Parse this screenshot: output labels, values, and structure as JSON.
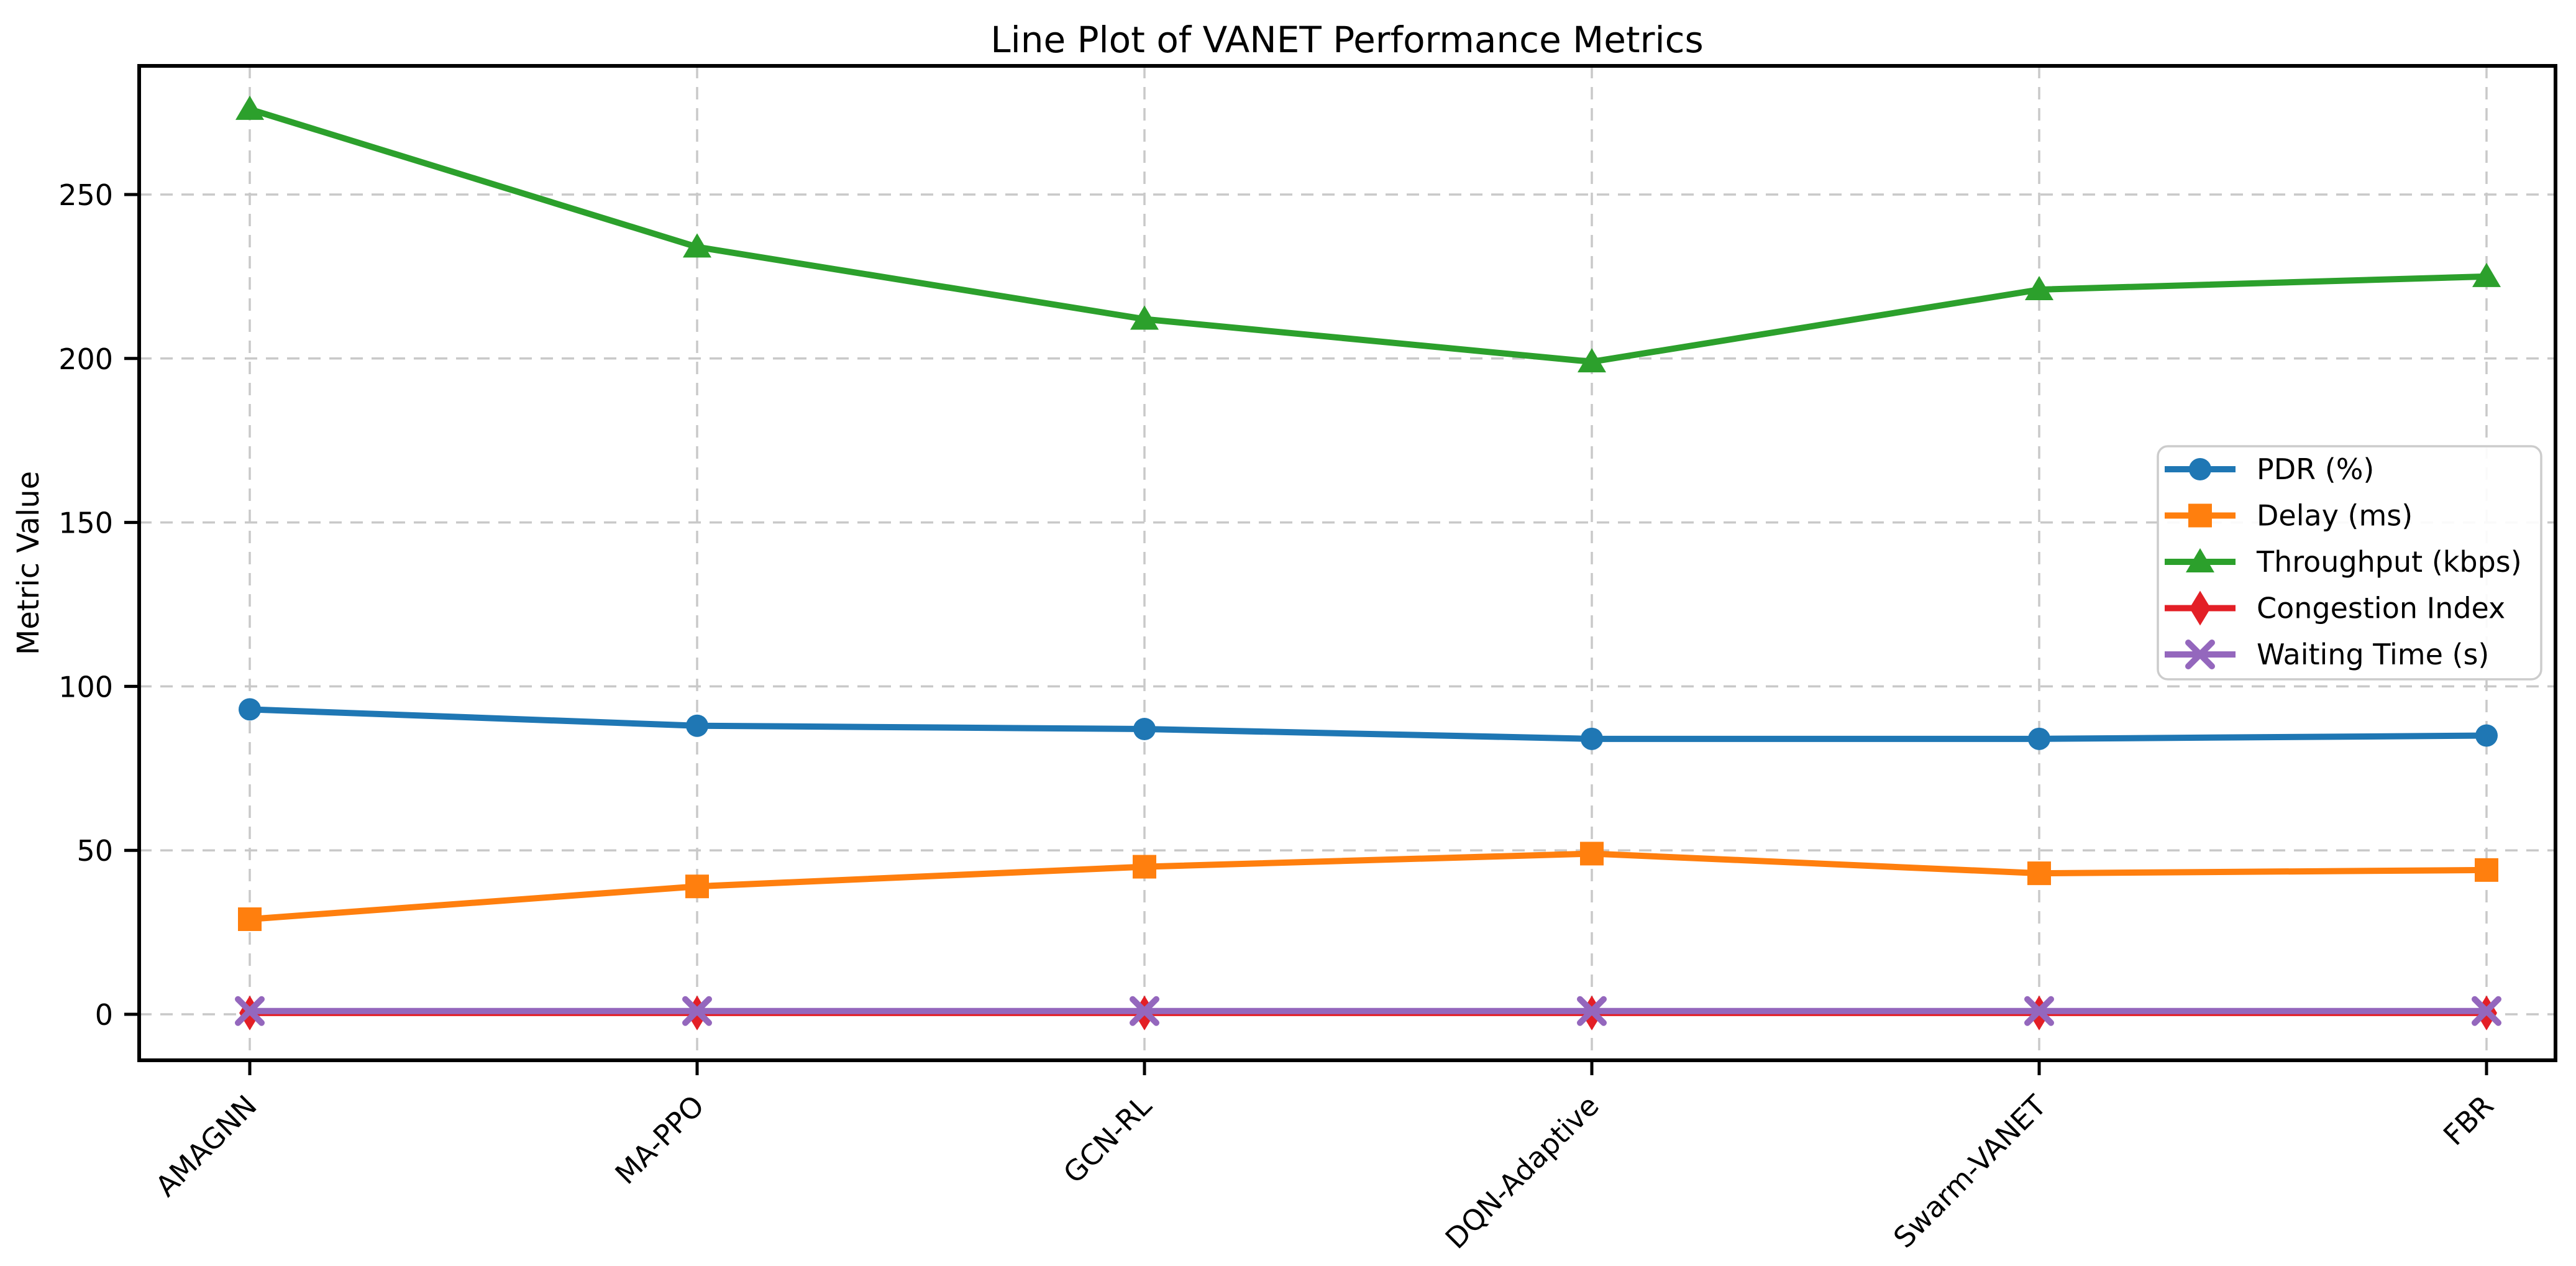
{
  "figure": {
    "title": "Line Plot of VANET Performance Metrics",
    "ylabel": "Metric Value"
  },
  "chart_data": {
    "type": "line",
    "title": "Line Plot of VANET Performance Metrics",
    "xlabel": "",
    "ylabel": "Metric Value",
    "categories": [
      "AMAGNN",
      "MA-PPO",
      "GCN-RL",
      "DQN-Adaptive",
      "Swarm-VANET",
      "FBR"
    ],
    "series": [
      {
        "name": "PDR (%)",
        "marker": "circle",
        "color": "#1f77b4",
        "values": [
          93,
          88,
          87,
          84,
          84,
          85
        ]
      },
      {
        "name": "Delay (ms)",
        "marker": "square",
        "color": "#ff7f0e",
        "values": [
          29,
          39,
          45,
          49,
          43,
          44
        ]
      },
      {
        "name": "Throughput (kbps)",
        "marker": "triangle",
        "color": "#2ca02c",
        "values": [
          276,
          234,
          212,
          199,
          221,
          225
        ]
      },
      {
        "name": "Congestion Index",
        "marker": "diamond",
        "color": "#e31f26",
        "values": [
          0.4,
          0.4,
          0.4,
          0.4,
          0.4,
          0.4
        ]
      },
      {
        "name": "Waiting Time (s)",
        "marker": "x",
        "color": "#9467bd",
        "values": [
          1.0,
          1.0,
          1.0,
          1.0,
          1.0,
          1.0
        ]
      }
    ],
    "yticks": [
      0,
      50,
      100,
      150,
      200,
      250
    ],
    "ylim": [
      -14,
      289
    ],
    "grid": true,
    "grid_style": "dashed",
    "legend_position": "center-right",
    "x_tick_rotation_deg": 45
  }
}
